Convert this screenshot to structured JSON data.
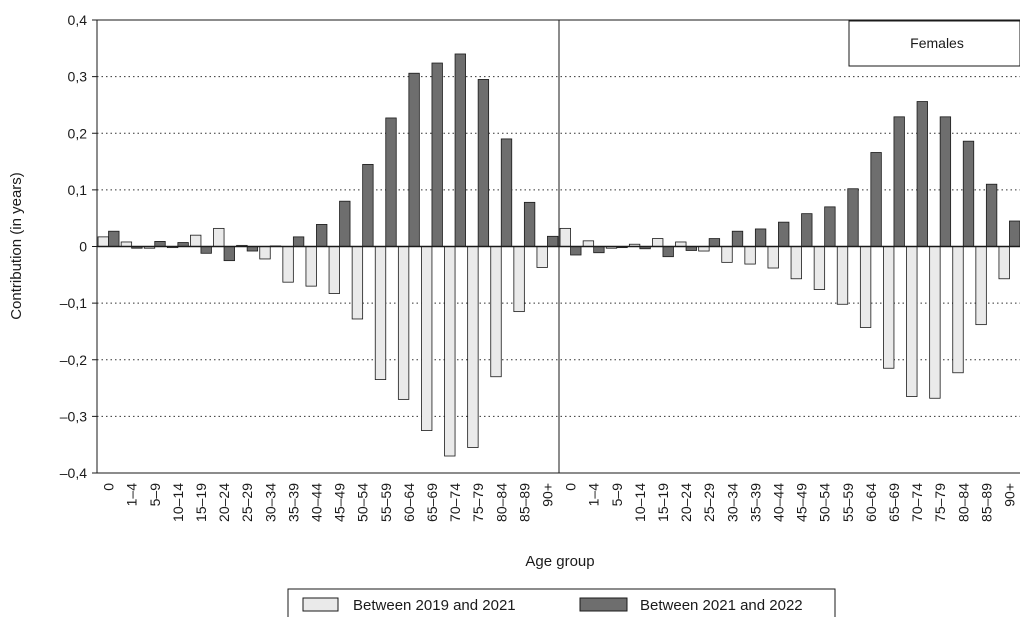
{
  "chart_data": {
    "type": "bar",
    "ylabel": "Contribution (in years)",
    "xlabel": "Age group",
    "ylim": [
      -0.4,
      0.4
    ],
    "y_ticks": [
      "0,4",
      "0,3",
      "0,2",
      "0,1",
      "0",
      "–0,1",
      "–0,2",
      "–0,3",
      "–0,4"
    ],
    "y_tick_values": [
      0.4,
      0.3,
      0.2,
      0.1,
      0,
      -0.1,
      -0.2,
      -0.3,
      -0.4
    ],
    "grid": "horizontal-dotted",
    "legend_position": "bottom",
    "categories": [
      "0",
      "1–4",
      "5–9",
      "10–14",
      "15–19",
      "20–24",
      "25–29",
      "30–34",
      "35–39",
      "40–44",
      "45–49",
      "50–54",
      "55–59",
      "60–64",
      "65–69",
      "70–74",
      "75–79",
      "80–84",
      "85–89",
      "90+"
    ],
    "legend": [
      {
        "label": "Between 2019 and 2021",
        "color": "#eaeaea"
      },
      {
        "label": "Between 2021 and 2022",
        "color": "#6e6e6e"
      }
    ],
    "panels": [
      {
        "name": "",
        "series": [
          {
            "name": "Between 2019 and 2021",
            "values": [
              0.017,
              0.008,
              -0.003,
              -0.002,
              0.02,
              0.032,
              0.002,
              -0.022,
              -0.063,
              -0.07,
              -0.083,
              -0.128,
              -0.235,
              -0.27,
              -0.325,
              -0.37,
              -0.355,
              -0.23,
              -0.115,
              -0.037
            ]
          },
          {
            "name": "Between 2021 and 2022",
            "values": [
              0.027,
              -0.003,
              0.009,
              0.007,
              -0.012,
              -0.025,
              -0.008,
              0.001,
              0.017,
              0.039,
              0.08,
              0.145,
              0.227,
              0.306,
              0.324,
              0.34,
              0.295,
              0.19,
              0.078,
              0.018
            ]
          }
        ]
      },
      {
        "name": "Females",
        "series": [
          {
            "name": "Between 2019 and 2021",
            "values": [
              0.032,
              0.01,
              -0.003,
              0.004,
              0.014,
              0.008,
              -0.008,
              -0.028,
              -0.031,
              -0.038,
              -0.057,
              -0.076,
              -0.102,
              -0.143,
              -0.215,
              -0.265,
              -0.268,
              -0.223,
              -0.138,
              -0.057
            ]
          },
          {
            "name": "Between 2021 and 2022",
            "values": [
              -0.015,
              -0.011,
              -0.002,
              -0.004,
              -0.018,
              -0.007,
              0.014,
              0.027,
              0.031,
              0.043,
              0.058,
              0.07,
              0.102,
              0.166,
              0.229,
              0.256,
              0.229,
              0.186,
              0.11,
              0.045
            ]
          }
        ]
      }
    ]
  }
}
